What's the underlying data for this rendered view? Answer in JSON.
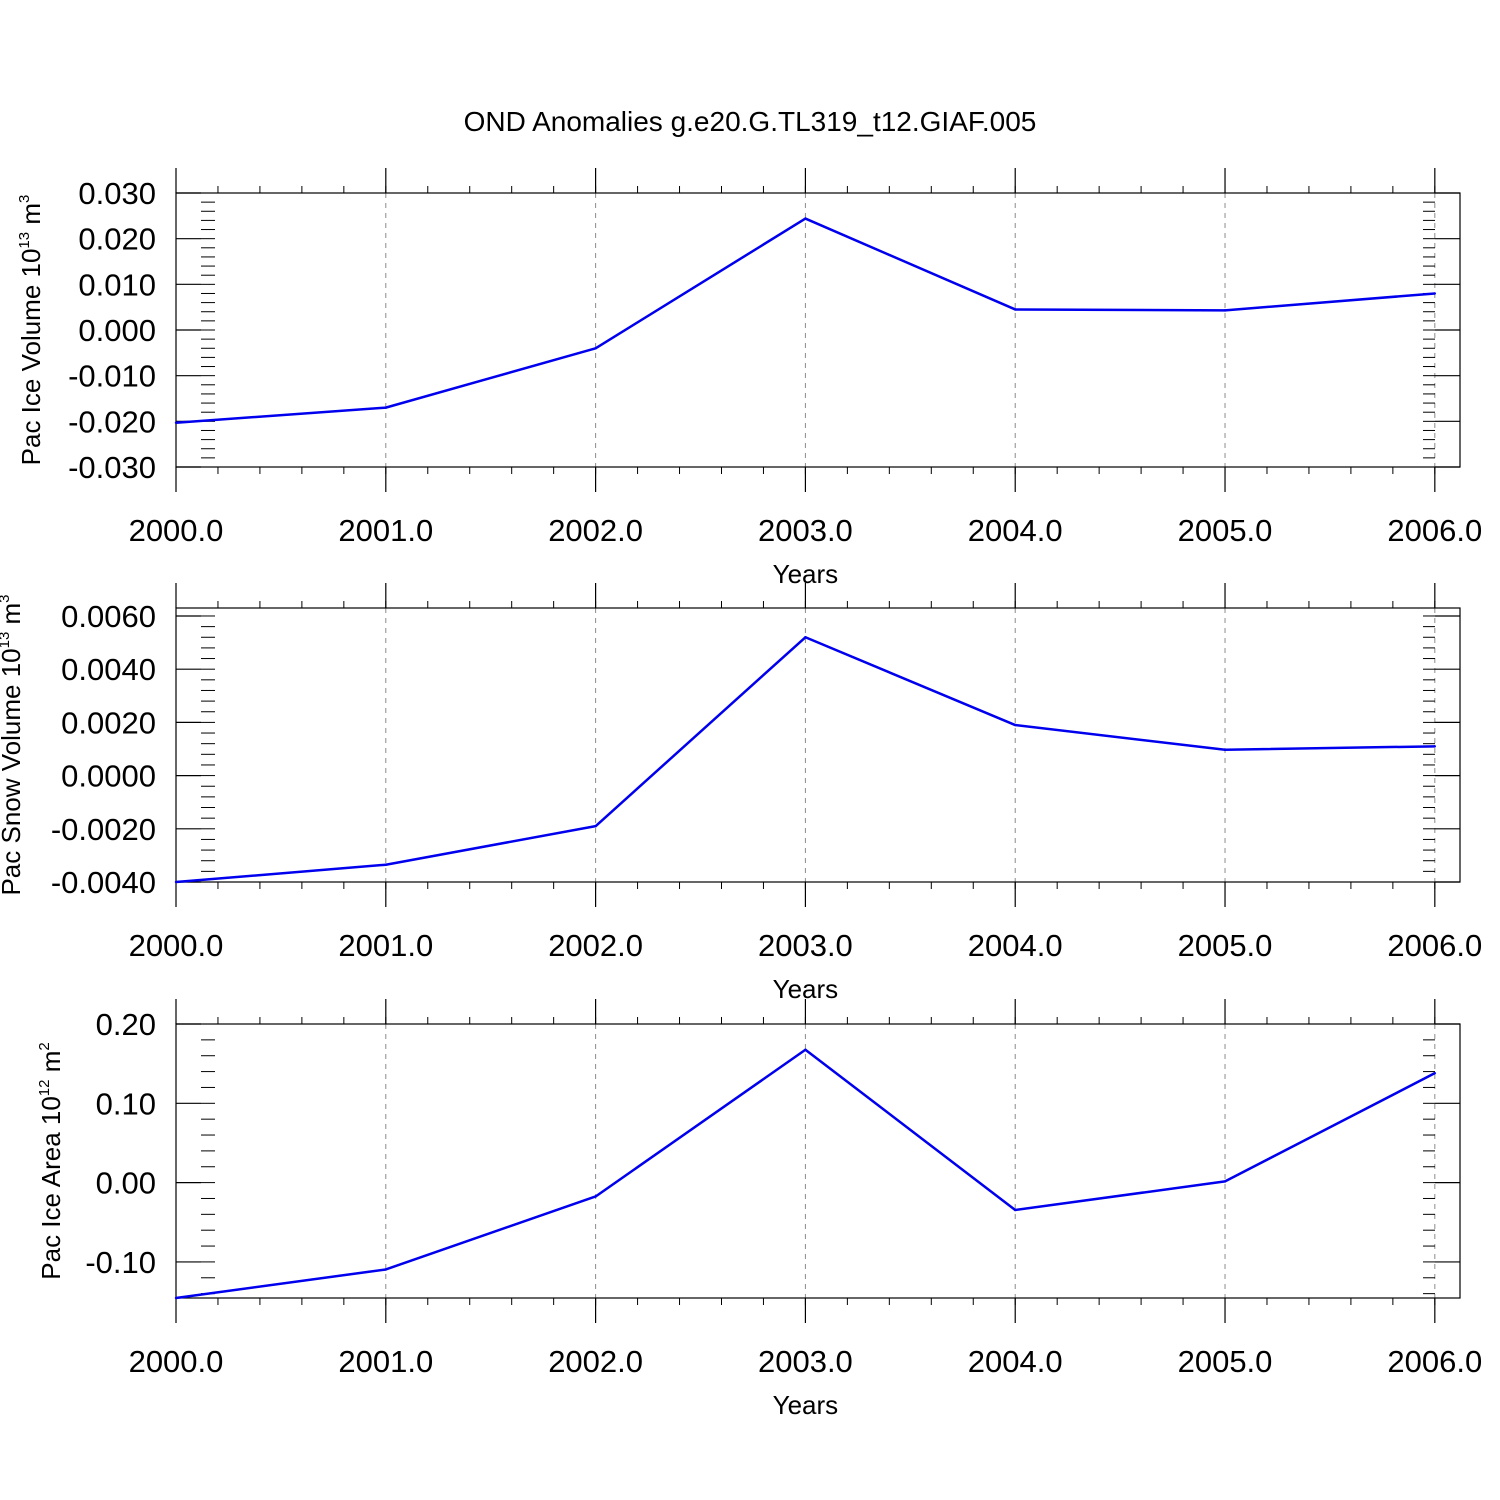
{
  "figure": {
    "title": "OND Anomalies g.e20.G.TL319_t12.GIAF.005"
  },
  "colors": {
    "line": "#0000ee",
    "frame": "#000000",
    "grid": "#8c8c8c"
  },
  "chart_data": [
    {
      "type": "line",
      "xlabel": "Years",
      "ylabel": {
        "text": "Pac Ice Volume 10",
        "sup": "13",
        "unit": " m",
        "unit_sup": "3"
      },
      "x_ticks": [
        "2000.0",
        "2001.0",
        "2002.0",
        "2003.0",
        "2004.0",
        "2005.0",
        "2006.0"
      ],
      "xlim": [
        2000,
        2006.12
      ],
      "ylim": [
        -0.03,
        0.03
      ],
      "y_ticks": [
        0.03,
        0.02,
        0.01,
        0.0,
        -0.01,
        -0.02,
        -0.03
      ],
      "y_tick_labels": [
        "0.030",
        "0.020",
        "0.010",
        "0.000",
        "-0.010",
        "-0.020",
        "-0.030"
      ],
      "grid": "vertical dashed",
      "series": [
        {
          "x": [
            2000,
            2001,
            2002,
            2003,
            2004,
            2005,
            2006
          ],
          "y": [
            -0.0203,
            -0.017,
            -0.004,
            0.0244,
            0.0045,
            0.0043,
            0.008
          ]
        }
      ]
    },
    {
      "type": "line",
      "xlabel": "Years",
      "ylabel": {
        "text": "Pac Snow Volume 10",
        "sup": "13",
        "unit": " m",
        "unit_sup": "3"
      },
      "x_ticks": [
        "2000.0",
        "2001.0",
        "2002.0",
        "2003.0",
        "2004.0",
        "2005.0",
        "2006.0"
      ],
      "xlim": [
        2000,
        2006.12
      ],
      "ylim": [
        -0.004,
        0.0063
      ],
      "y_ticks": [
        0.006,
        0.004,
        0.002,
        0.0,
        -0.002,
        -0.004
      ],
      "y_tick_labels": [
        "0.0060",
        "0.0040",
        "0.0020",
        "0.0000",
        "-0.0020",
        "-0.0040"
      ],
      "grid": "vertical dashed",
      "series": [
        {
          "x": [
            2000,
            2001,
            2002,
            2003,
            2004,
            2005,
            2006
          ],
          "y": [
            -0.004,
            -0.00335,
            -0.0019,
            0.0052,
            0.0019,
            0.00097,
            0.0011
          ]
        }
      ]
    },
    {
      "type": "line",
      "xlabel": "Years",
      "ylabel": {
        "text": "Pac Ice Area 10",
        "sup": "12",
        "unit": " m",
        "unit_sup": "2"
      },
      "x_ticks": [
        "2000.0",
        "2001.0",
        "2002.0",
        "2003.0",
        "2004.0",
        "2005.0",
        "2006.0"
      ],
      "xlim": [
        2000,
        2006.12
      ],
      "ylim": [
        -0.1455,
        0.2
      ],
      "y_ticks": [
        0.2,
        0.1,
        0.0,
        -0.1
      ],
      "y_tick_labels": [
        "0.20",
        "0.10",
        "0.00",
        "-0.10"
      ],
      "grid": "vertical dashed",
      "series": [
        {
          "x": [
            2000,
            2001,
            2002,
            2003,
            2004,
            2005,
            2006
          ],
          "y": [
            -0.1455,
            -0.1095,
            -0.0175,
            0.1675,
            -0.0345,
            0.0015,
            0.138
          ]
        }
      ]
    }
  ]
}
